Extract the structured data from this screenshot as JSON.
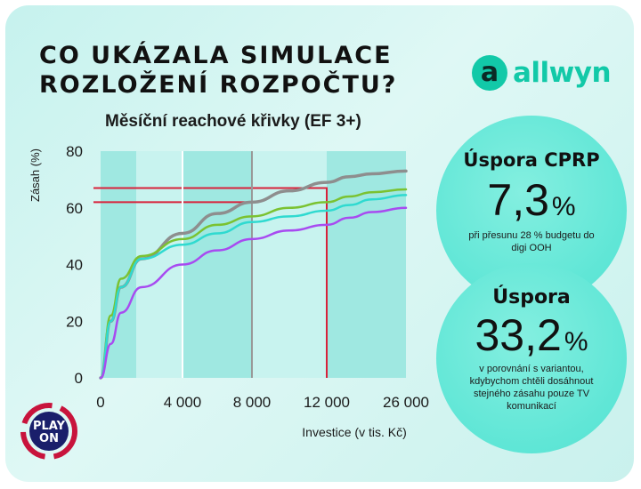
{
  "headline": {
    "line1": "CO UKÁZALA SIMULACE",
    "line2": "ROZLOŽENÍ ROZPOČTU?"
  },
  "brand": {
    "mark": "a",
    "name": "allwyn",
    "color": "#12c9a8"
  },
  "partner_logo": {
    "line1": "PLAY",
    "line2": "ON",
    "colors": [
      "#1a1f6b",
      "#c8143c"
    ]
  },
  "chart_data": {
    "type": "line",
    "title": "Měsíční reachové křivky (EF 3+)",
    "xlabel": "Investice (v tis. Kč)",
    "ylabel": "Zásah (%)",
    "x_tick_labels": [
      "0",
      "4 000",
      "8 000",
      "12 000",
      "26 000"
    ],
    "y_ticks": [
      0,
      20,
      40,
      60,
      80
    ],
    "ylim": [
      0,
      80
    ],
    "x_axis_note": "non-linear axis; tick positions equally spaced except last segment",
    "series": [
      {
        "color": "#8e8e8e",
        "points": [
          [
            0,
            0
          ],
          [
            500,
            20
          ],
          [
            1000,
            32
          ],
          [
            2000,
            42
          ],
          [
            4000,
            51
          ],
          [
            6000,
            58
          ],
          [
            8000,
            62
          ],
          [
            10000,
            66
          ],
          [
            12000,
            69
          ],
          [
            16000,
            71
          ],
          [
            20000,
            72
          ],
          [
            26000,
            73
          ]
        ]
      },
      {
        "color": "#7bc231",
        "points": [
          [
            0,
            0
          ],
          [
            500,
            22
          ],
          [
            1000,
            35
          ],
          [
            2000,
            43
          ],
          [
            4000,
            49
          ],
          [
            6000,
            54
          ],
          [
            8000,
            57
          ],
          [
            10000,
            60
          ],
          [
            12000,
            62
          ],
          [
            16000,
            64
          ],
          [
            20000,
            65.5
          ],
          [
            26000,
            66.5
          ]
        ]
      },
      {
        "color": "#2fdad0",
        "points": [
          [
            0,
            0
          ],
          [
            500,
            20
          ],
          [
            1000,
            32
          ],
          [
            2000,
            42
          ],
          [
            4000,
            47
          ],
          [
            6000,
            51
          ],
          [
            8000,
            55
          ],
          [
            10000,
            57
          ],
          [
            12000,
            59
          ],
          [
            16000,
            61
          ],
          [
            20000,
            63
          ],
          [
            26000,
            64.5
          ]
        ]
      },
      {
        "color": "#a84bf0",
        "points": [
          [
            0,
            0
          ],
          [
            500,
            12
          ],
          [
            1000,
            23
          ],
          [
            2000,
            32
          ],
          [
            4000,
            40
          ],
          [
            6000,
            45
          ],
          [
            8000,
            49
          ],
          [
            10000,
            52
          ],
          [
            12000,
            54
          ],
          [
            16000,
            56.5
          ],
          [
            20000,
            58.5
          ],
          [
            26000,
            60
          ]
        ]
      }
    ],
    "reference_lines": [
      {
        "kind": "horizontal-to-x",
        "y": 67,
        "x_end": 12000,
        "color": "#d8213a"
      },
      {
        "kind": "horizontal-to-x",
        "y": 62,
        "x_end": 8000,
        "color": "#d8213a"
      },
      {
        "kind": "vertical",
        "x": 8000,
        "color": "#999999"
      },
      {
        "kind": "vertical",
        "x": 4000,
        "color": "#ffffff"
      }
    ],
    "grid": "shaded columns",
    "grid_colors": [
      "#9fe8e1",
      "#c8f3ef"
    ]
  },
  "bubbles": [
    {
      "title": "Úspora CPRP",
      "value": "7,3",
      "unit": "%",
      "note": "při přesunu 28 % budgetu do digi OOH"
    },
    {
      "title": "Úspora",
      "value": "33,2",
      "unit": "%",
      "note": "v porovnání s variantou, kdybychom chtěli dosáhnout stejného zásahu pouze TV komunikací"
    }
  ]
}
